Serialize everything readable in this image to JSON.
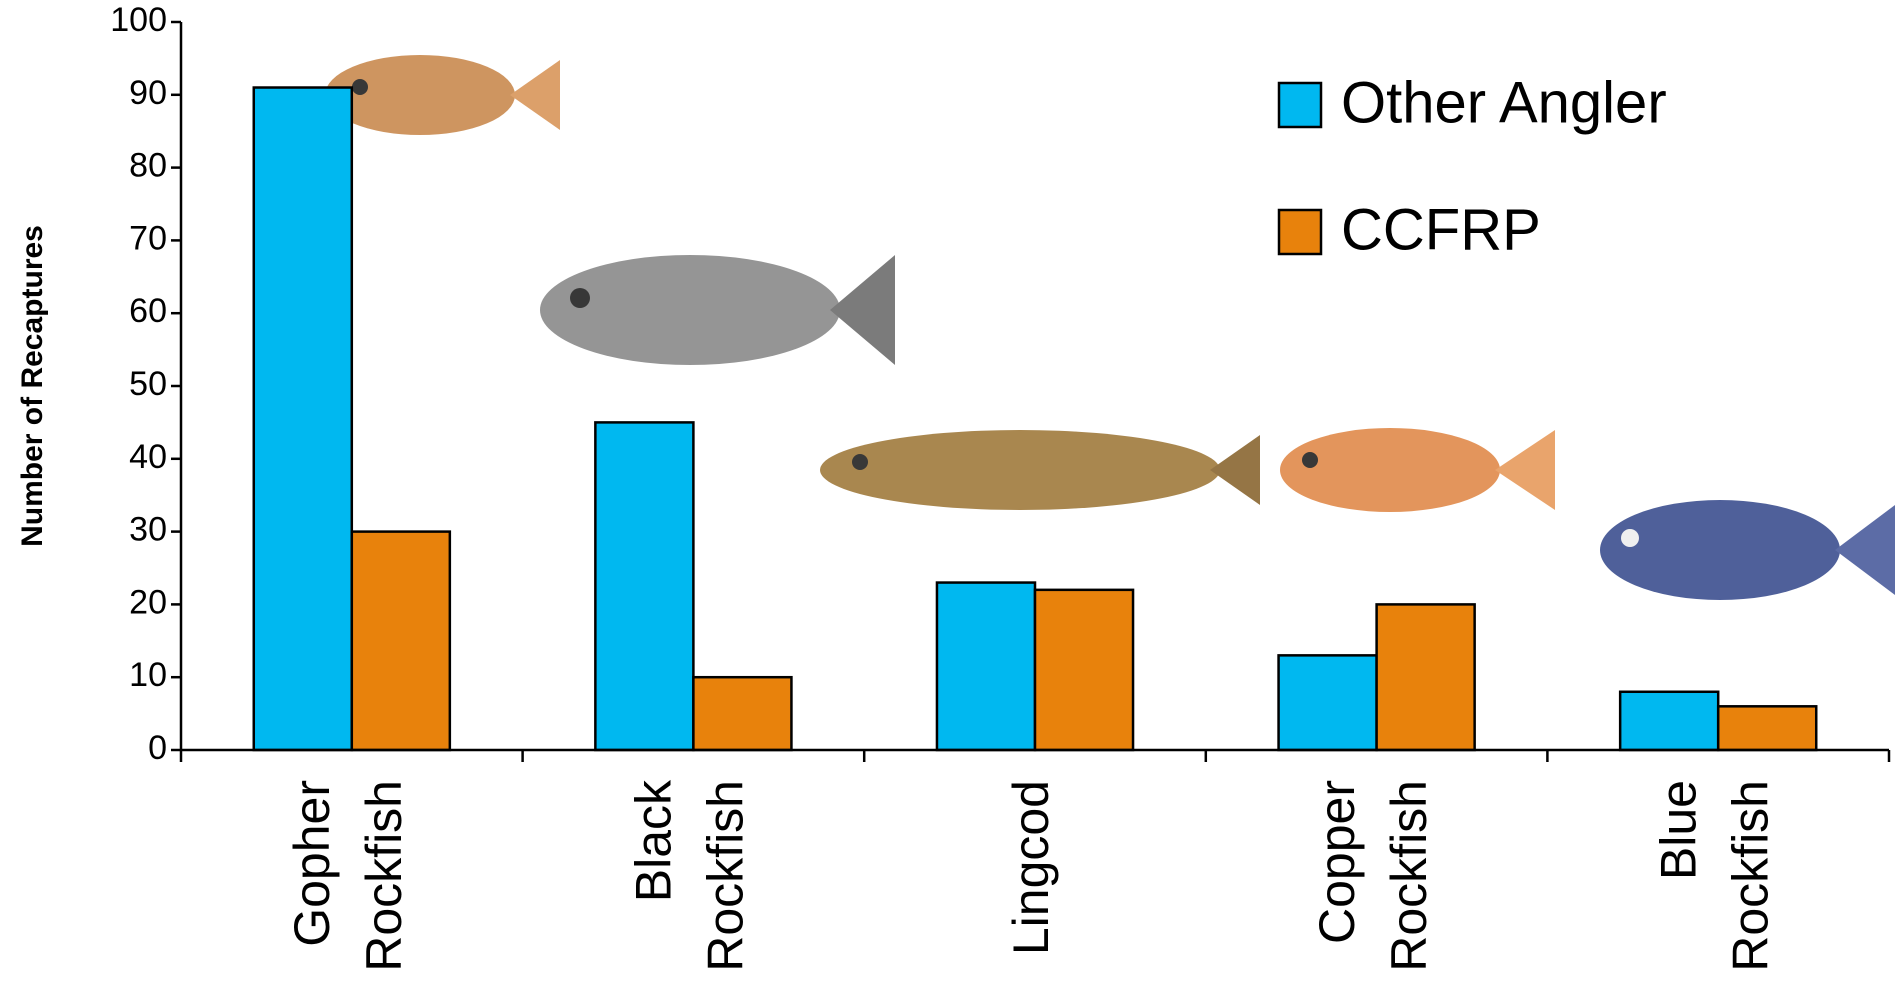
{
  "chart_data": {
    "type": "bar",
    "y_label": "Number of Recaptures",
    "categories": [
      "Gopher Rockfish",
      "Black Rockfish",
      "Lingcod",
      "Copper Rockfish",
      "Blue Rockfish"
    ],
    "series": [
      {
        "name": "Other Angler",
        "color": "#00b8f0",
        "values": [
          91,
          45,
          23,
          13,
          8
        ]
      },
      {
        "name": "CCFRP",
        "color": "#e8820c",
        "values": [
          30,
          10,
          22,
          20,
          6
        ]
      }
    ],
    "ylim": [
      0,
      100
    ],
    "yticks": [
      0,
      10,
      20,
      30,
      40,
      50,
      60,
      70,
      80,
      90,
      100
    ],
    "grid": false,
    "legend": "upper right"
  }
}
